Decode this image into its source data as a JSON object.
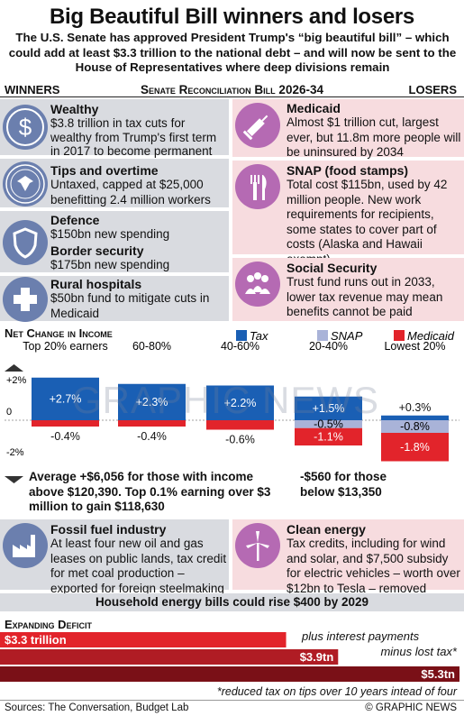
{
  "title": "Big Beautiful Bill winners and losers",
  "subtitle": "The U.S. Senate has approved President Trump's “big beautiful bill” – which could add at least $3.3 trillion to the national debt – and will now be sent to the House of Representatives where deep divisions remain",
  "header": {
    "left": "WINNERS",
    "center": "Senate Reconciliation Bill 2026-34",
    "right": "LOSERS"
  },
  "winners": [
    {
      "title": "Wealthy",
      "text": "$3.8 trillion in tax cuts for wealthy from Trump's first term in 2017 to become permanent",
      "icon": "dollar-icon"
    },
    {
      "title": "Tips and overtime",
      "text": "Untaxed, capped at $25,000 benefitting 2.4 million workers",
      "icon": "treasury-seal-icon"
    },
    {
      "title": "Defence",
      "text": "$150bn new spending",
      "icon": "shield-icon"
    },
    {
      "title": "Border security",
      "text": "$175bn new spending",
      "icon": "shield-icon"
    },
    {
      "title": "Rural hospitals",
      "text": "$50bn fund to mitigate cuts in Medicaid",
      "icon": "medical-cross-icon"
    }
  ],
  "losers": [
    {
      "title": "Medicaid",
      "text": "Almost $1 trillion cut, largest ever, but 11.8m more people will be uninsured by 2034",
      "icon": "syringe-icon"
    },
    {
      "title": "SNAP (food stamps)",
      "text": "Total cost $115bn, used by 42 million people. New work requirements for recipients, some states to cover part of costs (Alaska and Hawaii exempt)",
      "icon": "fork-knife-icon"
    },
    {
      "title": "Social Security",
      "text": "Trust fund runs out in 2033, lower tax revenue may mean benefits cannot be paid",
      "icon": "people-icon"
    }
  ],
  "income_section": {
    "title": "Net Change in Income"
  },
  "colors": {
    "tax": "#1a5fb4",
    "snap": "#a9b3d8",
    "medicaid": "#e2242b",
    "winner_bg": "#d9dbe0",
    "loser_bg": "#f7dcdf",
    "deficit_dark": "#7a1017"
  },
  "chart_data": {
    "type": "bar",
    "categories": [
      "Top 20% earners",
      "60-80%",
      "40-60%",
      "20-40%",
      "Lowest 20%"
    ],
    "series": [
      {
        "name": "Tax",
        "values": [
          2.7,
          2.3,
          2.2,
          1.5,
          0.3
        ],
        "labels": [
          "+2.7%",
          "+2.3%",
          "+2.2%",
          "+1.5%",
          "+0.3%"
        ]
      },
      {
        "name": "SNAP",
        "values": [
          0,
          0,
          0,
          -0.5,
          -0.8
        ],
        "labels": [
          "",
          "",
          "",
          "-0.5%",
          "-0.8%"
        ]
      },
      {
        "name": "Medicaid",
        "values": [
          -0.4,
          -0.4,
          -0.6,
          -1.1,
          -1.8
        ],
        "labels": [
          "-0.4%",
          "-0.4%",
          "-0.6%",
          "-1.1%",
          "-1.8%"
        ]
      }
    ],
    "yticks": [
      "+2%",
      "0",
      "-2%"
    ],
    "ylim": [
      -2.2,
      2.9
    ],
    "legend": [
      "Tax",
      "SNAP",
      "Medicaid"
    ]
  },
  "notes": {
    "top": "Average +$6,056 for those with income above $120,390. Top 0.1% earning over $3 million to gain $118,630",
    "bottom": "-$560 for those below $13,350"
  },
  "energy": {
    "winner": {
      "title": "Fossil fuel industry",
      "text": "At least four new oil and gas leases on public lands, tax credit for met coal production – exported for foreign steelmaking",
      "icon": "factory-icon"
    },
    "loser": {
      "title": "Clean energy",
      "text": "Tax credits, including for wind and solar, and $7,500 subsidy for electric vehicles – worth over $12bn to Tesla – removed",
      "icon": "wind-turbine-icon"
    },
    "banner": "Household energy bills could rise $400 by 2029"
  },
  "deficit": {
    "title": "Expanding Deficit",
    "bars": [
      {
        "label": "$3.3 trillion",
        "value": 3.3
      },
      {
        "label": "$3.9tn",
        "value": 3.9
      },
      {
        "label": "$5.3tn",
        "value": 5.3
      }
    ],
    "note1": "plus interest payments",
    "note2": "minus lost tax*",
    "footnote": "*reduced tax on tips over 10 years intead of four"
  },
  "footer": {
    "sources": "Sources: The Conversation, Budget Lab",
    "credit": "© GRAPHIC NEWS"
  },
  "watermark": "GRAPHIC NEWS"
}
